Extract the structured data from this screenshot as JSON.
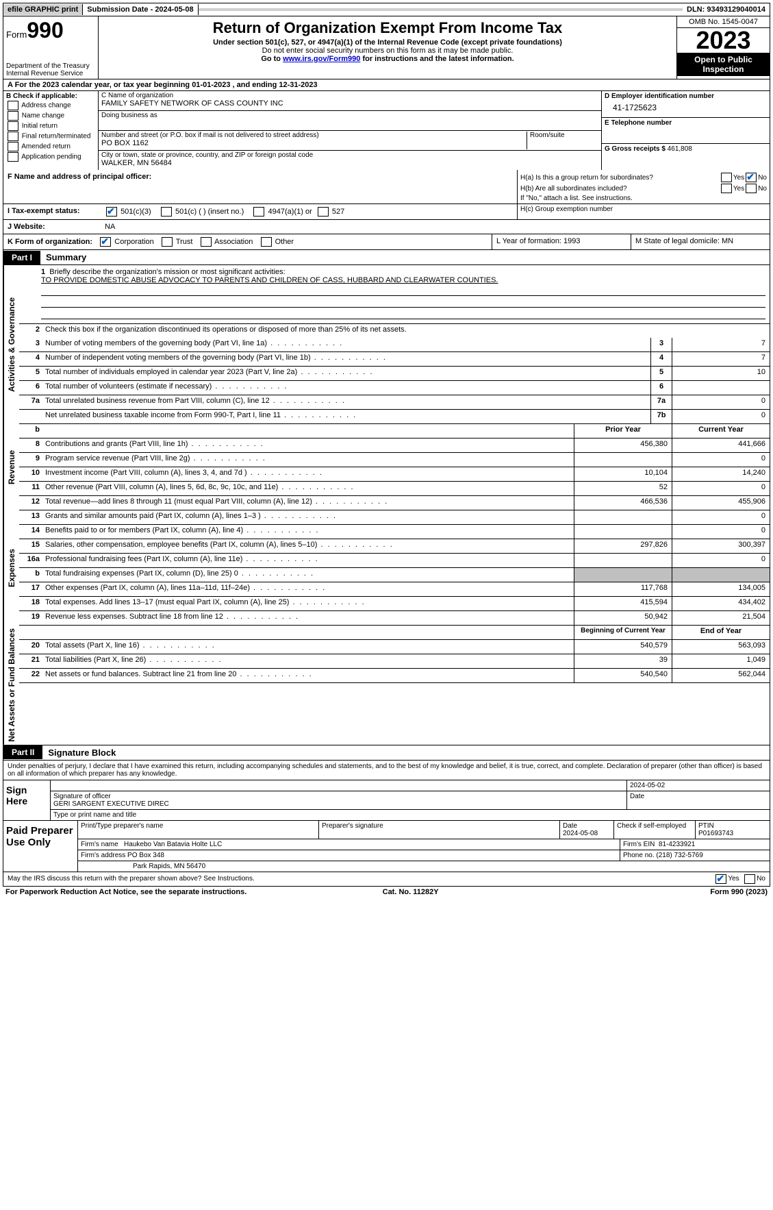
{
  "topbar": {
    "efile": "efile GRAPHIC print",
    "sub_label": "Submission Date - 2024-05-08",
    "dln": "DLN: 93493129040014"
  },
  "header": {
    "form_label": "Form",
    "form_num": "990",
    "dept": "Department of the Treasury Internal Revenue Service",
    "title": "Return of Organization Exempt From Income Tax",
    "sub1": "Under section 501(c), 527, or 4947(a)(1) of the Internal Revenue Code (except private foundations)",
    "sub2": "Do not enter social security numbers on this form as it may be made public.",
    "sub3_pre": "Go to ",
    "sub3_link": "www.irs.gov/Form990",
    "sub3_post": " for instructions and the latest information.",
    "omb": "OMB No. 1545-0047",
    "year": "2023",
    "inspect": "Open to Public Inspection"
  },
  "line_a": "A For the 2023 calendar year, or tax year beginning 01-01-2023    , and ending 12-31-2023",
  "section_b": {
    "title": "B Check if applicable:",
    "items": [
      "Address change",
      "Name change",
      "Initial return",
      "Final return/terminated",
      "Amended return",
      "Application pending"
    ]
  },
  "section_c": {
    "name_label": "C Name of organization",
    "name": "FAMILY SAFETY NETWORK OF CASS COUNTY INC",
    "dba_label": "Doing business as",
    "dba": "",
    "street_label": "Number and street (or P.O. box if mail is not delivered to street address)",
    "street": "PO BOX 1162",
    "room_label": "Room/suite",
    "city_label": "City or town, state or province, country, and ZIP or foreign postal code",
    "city": "WALKER, MN  56484"
  },
  "section_d": {
    "ein_label": "D Employer identification number",
    "ein": "41-1725623",
    "phone_label": "E Telephone number",
    "phone": "",
    "gross_label": "G Gross receipts $",
    "gross": "461,808"
  },
  "section_f": "F  Name and address of principal officer:",
  "section_h": {
    "ha": "H(a)  Is this a group return for subordinates?",
    "ha_yes": "Yes",
    "ha_no": "No",
    "hb": "H(b)  Are all subordinates included?",
    "hb_yes": "Yes",
    "hb_no": "No",
    "hb_note": "If \"No,\" attach a list. See instructions.",
    "hc": "H(c)  Group exemption number"
  },
  "section_i": {
    "label": "I  Tax-exempt status:",
    "opts": [
      "501(c)(3)",
      "501(c) (  ) (insert no.)",
      "4947(a)(1) or",
      "527"
    ]
  },
  "section_j": {
    "label": "J  Website:",
    "val": "NA"
  },
  "section_k": {
    "label": "K Form of organization:",
    "opts": [
      "Corporation",
      "Trust",
      "Association",
      "Other"
    ]
  },
  "section_l": "L Year of formation: 1993",
  "section_m": "M State of legal domicile: MN",
  "part1": {
    "tag": "Part I",
    "title": "Summary"
  },
  "summary": {
    "side_gov": "Activities & Governance",
    "side_rev": "Revenue",
    "side_exp": "Expenses",
    "side_net": "Net Assets or Fund Balances",
    "q1": "Briefly describe the organization's mission or most significant activities:",
    "mission": "TO PROVIDE DOMESTIC ABUSE ADVOCACY TO PARENTS AND CHILDREN OF CASS, HUBBARD AND CLEARWATER COUNTIES.",
    "q2": "Check this box      if the organization discontinued its operations or disposed of more than 25% of its net assets.",
    "rows_gov": [
      {
        "n": "3",
        "l": "Number of voting members of the governing body (Part VI, line 1a)",
        "box": "3",
        "v": "7"
      },
      {
        "n": "4",
        "l": "Number of independent voting members of the governing body (Part VI, line 1b)",
        "box": "4",
        "v": "7"
      },
      {
        "n": "5",
        "l": "Total number of individuals employed in calendar year 2023 (Part V, line 2a)",
        "box": "5",
        "v": "10"
      },
      {
        "n": "6",
        "l": "Total number of volunteers (estimate if necessary)",
        "box": "6",
        "v": ""
      },
      {
        "n": "7a",
        "l": "Total unrelated business revenue from Part VIII, column (C), line 12",
        "box": "7a",
        "v": "0"
      },
      {
        "n": "",
        "l": "Net unrelated business taxable income from Form 990-T, Part I, line 11",
        "box": "7b",
        "v": "0"
      }
    ],
    "hdr_b": "b",
    "hdr_prior": "Prior Year",
    "hdr_curr": "Current Year",
    "rows_rev": [
      {
        "n": "8",
        "l": "Contributions and grants (Part VIII, line 1h)",
        "p": "456,380",
        "c": "441,666"
      },
      {
        "n": "9",
        "l": "Program service revenue (Part VIII, line 2g)",
        "p": "",
        "c": "0"
      },
      {
        "n": "10",
        "l": "Investment income (Part VIII, column (A), lines 3, 4, and 7d )",
        "p": "10,104",
        "c": "14,240"
      },
      {
        "n": "11",
        "l": "Other revenue (Part VIII, column (A), lines 5, 6d, 8c, 9c, 10c, and 11e)",
        "p": "52",
        "c": "0"
      },
      {
        "n": "12",
        "l": "Total revenue—add lines 8 through 11 (must equal Part VIII, column (A), line 12)",
        "p": "466,536",
        "c": "455,906"
      }
    ],
    "rows_exp": [
      {
        "n": "13",
        "l": "Grants and similar amounts paid (Part IX, column (A), lines 1–3 )",
        "p": "",
        "c": "0"
      },
      {
        "n": "14",
        "l": "Benefits paid to or for members (Part IX, column (A), line 4)",
        "p": "",
        "c": "0"
      },
      {
        "n": "15",
        "l": "Salaries, other compensation, employee benefits (Part IX, column (A), lines 5–10)",
        "p": "297,826",
        "c": "300,397"
      },
      {
        "n": "16a",
        "l": "Professional fundraising fees (Part IX, column (A), line 11e)",
        "p": "",
        "c": "0"
      },
      {
        "n": "b",
        "l": "Total fundraising expenses (Part IX, column (D), line 25) 0",
        "p": "shade",
        "c": "shade"
      },
      {
        "n": "17",
        "l": "Other expenses (Part IX, column (A), lines 11a–11d, 11f–24e)",
        "p": "117,768",
        "c": "134,005"
      },
      {
        "n": "18",
        "l": "Total expenses. Add lines 13–17 (must equal Part IX, column (A), line 25)",
        "p": "415,594",
        "c": "434,402"
      },
      {
        "n": "19",
        "l": "Revenue less expenses. Subtract line 18 from line 12",
        "p": "50,942",
        "c": "21,504"
      }
    ],
    "hdr_beg": "Beginning of Current Year",
    "hdr_end": "End of Year",
    "rows_net": [
      {
        "n": "20",
        "l": "Total assets (Part X, line 16)",
        "p": "540,579",
        "c": "563,093"
      },
      {
        "n": "21",
        "l": "Total liabilities (Part X, line 26)",
        "p": "39",
        "c": "1,049"
      },
      {
        "n": "22",
        "l": "Net assets or fund balances. Subtract line 21 from line 20",
        "p": "540,540",
        "c": "562,044"
      }
    ]
  },
  "part2": {
    "tag": "Part II",
    "title": "Signature Block"
  },
  "sig": {
    "intro": "Under penalties of perjury, I declare that I have examined this return, including accompanying schedules and statements, and to the best of my knowledge and belief, it is true, correct, and complete. Declaration of preparer (other than officer) is based on all information of which preparer has any knowledge.",
    "sign_here": "Sign Here",
    "sig_off": "Signature of officer",
    "officer": "GERI SARGENT  EXECUTIVE DIREC",
    "type_name": "Type or print name and title",
    "date_lbl": "Date",
    "date_val": "2024-05-02",
    "paid": "Paid Preparer Use Only",
    "prep_name_lbl": "Print/Type preparer's name",
    "prep_sig_lbl": "Preparer's signature",
    "prep_date_lbl": "Date",
    "prep_date": "2024-05-08",
    "self_emp": "Check       if self-employed",
    "ptin_lbl": "PTIN",
    "ptin": "P01693743",
    "firm_name_lbl": "Firm's name",
    "firm_name": "Haukebo Van Batavia Holte LLC",
    "firm_ein_lbl": "Firm's EIN",
    "firm_ein": "81-4233921",
    "firm_addr_lbl": "Firm's address",
    "firm_addr1": "PO Box 348",
    "firm_addr2": "Park Rapids, MN  56470",
    "firm_phone_lbl": "Phone no.",
    "firm_phone": "(218) 732-5769",
    "discuss": "May the IRS discuss this return with the preparer shown above? See Instructions.",
    "yes": "Yes",
    "no": "No"
  },
  "footer": {
    "left": "For Paperwork Reduction Act Notice, see the separate instructions.",
    "mid": "Cat. No. 11282Y",
    "right": "Form 990 (2023)"
  }
}
